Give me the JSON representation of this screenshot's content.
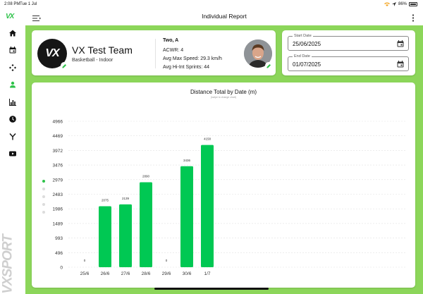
{
  "statusbar": {
    "time": "2:08 PM",
    "date": "Tue 1 Jul",
    "battery": "86%"
  },
  "sidebar": {
    "brand_mark": "VX",
    "brand_vertical": "VXSPORT",
    "items": [
      {
        "icon": "home-icon"
      },
      {
        "icon": "calendar-icon"
      },
      {
        "icon": "gamepad-icon"
      },
      {
        "icon": "person-icon",
        "active": true
      },
      {
        "icon": "bar-chart-icon"
      },
      {
        "icon": "clock-icon"
      },
      {
        "icon": "merge-icon"
      },
      {
        "icon": "video-icon"
      }
    ]
  },
  "header": {
    "title": "Individual Report"
  },
  "team": {
    "logo_text": "VX",
    "name": "VX Test Team",
    "sport": "Basketball - Indoor"
  },
  "player": {
    "name": "Two, A",
    "acwr_label": "ACWR:",
    "acwr_value": "4",
    "speed_label": "Avg Max Speed:",
    "speed_value": "29.3 km/h",
    "sprints_label": "Avg Hi-Int Sprints:",
    "sprints_value": "44"
  },
  "dates": {
    "start_label": "Start Date",
    "start_value": "25/06/2025",
    "end_label": "End Date",
    "end_value": "01/07/2025"
  },
  "colors": {
    "brand_green": "#2ec24a",
    "bar_green": "#00c853",
    "background_green": "#8cd65a"
  },
  "chart_data": {
    "type": "bar",
    "title": "Distance Total by Date (m)",
    "subtitle": "(swipe to change chart)",
    "categories": [
      "25/6",
      "26/6",
      "27/6",
      "28/6",
      "29/6",
      "30/6",
      "1/7"
    ],
    "values": [
      0,
      2075,
      2139,
      2890,
      0,
      3436,
      4158
    ],
    "ytick_labels": [
      "0",
      "496",
      "993",
      "1489",
      "1986",
      "2483",
      "2979",
      "3476",
      "3972",
      "4469",
      "4966"
    ],
    "ylim": [
      0,
      4966
    ],
    "grid": true
  },
  "pager": {
    "count": 5,
    "active_index": 0
  }
}
